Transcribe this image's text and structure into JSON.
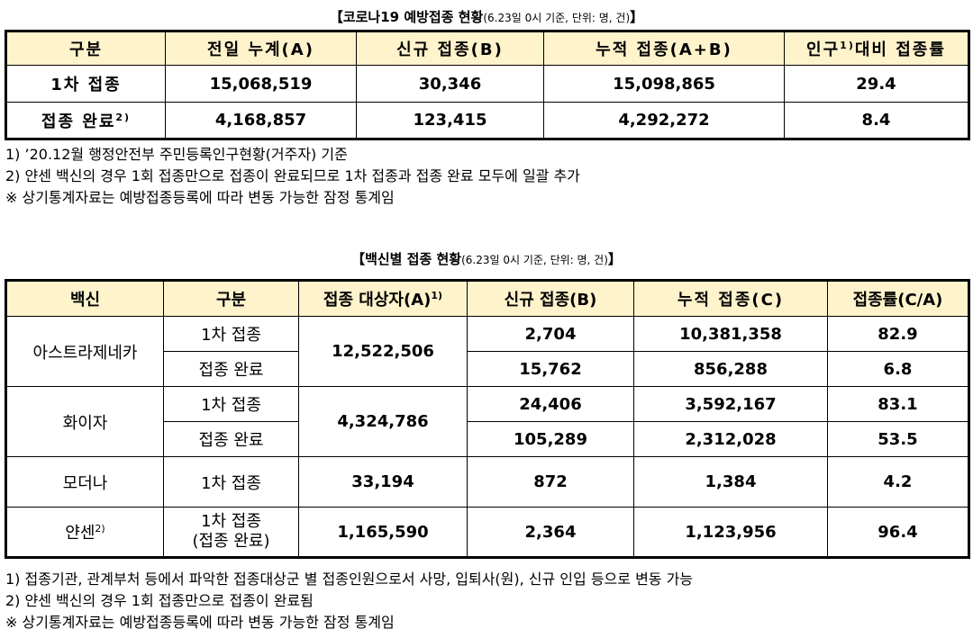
{
  "table1": {
    "title": "【코로나19 예방접종 현황",
    "title_sub": "(6.23일 0시 기준, 단위: 명, 건)",
    "title_end": "】",
    "headers": {
      "category": "구분",
      "prev_total": "전일 누계(A)",
      "new": "신규 접종(B)",
      "cumulative": "누적 접종(A+B)",
      "rate_pre": "인구",
      "rate_sup": "1)",
      "rate_post": "대비 접종률"
    },
    "rows": [
      {
        "label": "1차 접종",
        "label_sup": "",
        "prev_total": "15,068,519",
        "new": "30,346",
        "cumulative": "15,098,865",
        "rate": "29.4"
      },
      {
        "label": "접종 완료",
        "label_sup": "2)",
        "prev_total": "4,168,857",
        "new": "123,415",
        "cumulative": "4,292,272",
        "rate": "8.4"
      }
    ],
    "notes": [
      "1) ’20.12월 행정안전부 주민등록인구현황(거주자) 기준",
      "2) 얀센 백신의 경우 1회 접종만으로 접종이 완료되므로 1차 접종과 접종 완료 모두에 일괄 추가",
      "※ 상기통계자료는 예방접종등록에 따라 변동 가능한 잠정 통계임"
    ]
  },
  "table2": {
    "title": "【백신별 접종 현황",
    "title_sub": "(6.23일 0시 기준, 단위: 명, 건)",
    "title_end": "】",
    "headers": {
      "vaccine": "백신",
      "category": "구분",
      "target_pre": "접종 대상자(A)",
      "target_sup": "1)",
      "new": "신규 접종(B)",
      "cumulative": "누적 접종(C)",
      "rate": "접종률(C/A)"
    },
    "vaccines": [
      {
        "name": "아스트라제네카",
        "name_sup": "",
        "target": "12,522,506",
        "rows": [
          {
            "category": "1차 접종",
            "new": "2,704",
            "cumulative": "10,381,358",
            "rate": "82.9"
          },
          {
            "category": "접종 완료",
            "new": "15,762",
            "cumulative": "856,288",
            "rate": "6.8"
          }
        ]
      },
      {
        "name": "화이자",
        "name_sup": "",
        "target": "4,324,786",
        "rows": [
          {
            "category": "1차 접종",
            "new": "24,406",
            "cumulative": "3,592,167",
            "rate": "83.1"
          },
          {
            "category": "접종 완료",
            "new": "105,289",
            "cumulative": "2,312,028",
            "rate": "53.5"
          }
        ]
      },
      {
        "name": "모더나",
        "name_sup": "",
        "target": "33,194",
        "rows": [
          {
            "category": "1차 접종",
            "new": "872",
            "cumulative": "1,384",
            "rate": "4.2"
          }
        ]
      },
      {
        "name": "얀센",
        "name_sup": "2)",
        "target": "1,165,590",
        "rows": [
          {
            "category": "1차 접종",
            "category2": "(접종 완료)",
            "new": "2,364",
            "cumulative": "1,123,956",
            "rate": "96.4"
          }
        ]
      }
    ],
    "notes": [
      "1) 접종기관, 관계부처 등에서 파악한 접종대상군 별 접종인원으로서 사망, 입퇴사(원), 신규 인입 등으로 변동 가능",
      "2) 얀센 백신의 경우 1회 접종만으로 접종이 완료됨",
      "※ 상기통계자료는 예방접종등록에 따라 변동 가능한 잠정 통계임"
    ]
  }
}
